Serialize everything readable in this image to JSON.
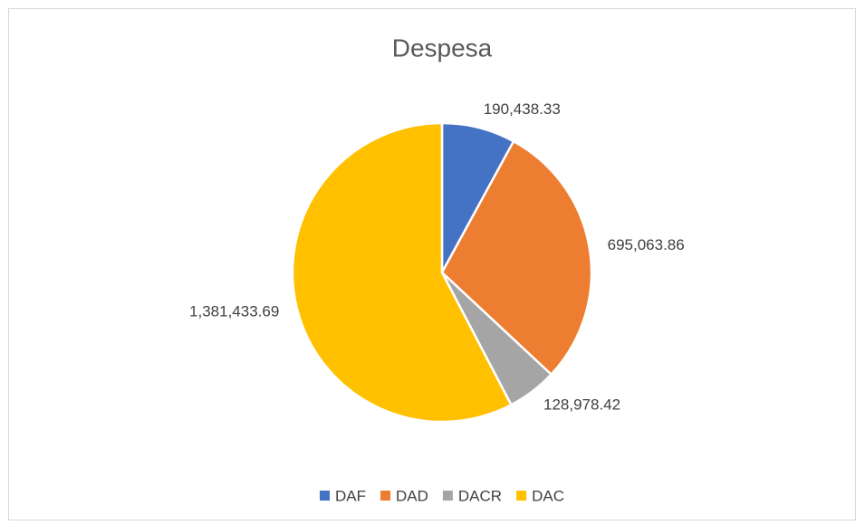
{
  "chart_data": {
    "type": "pie",
    "title": "Despesa",
    "categories": [
      "DAF",
      "DAD",
      "DACR",
      "DAC"
    ],
    "values": [
      190438.33,
      695063.86,
      128978.42,
      1381433.69
    ],
    "value_labels": [
      "190,438.33",
      "695,063.86",
      "128,978.42",
      "1,381,433.69"
    ],
    "colors": [
      "#4472c4",
      "#ed7d31",
      "#a5a5a5",
      "#ffc000"
    ],
    "legend": "bottom"
  }
}
